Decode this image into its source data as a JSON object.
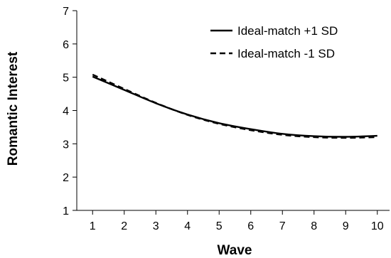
{
  "chart_data": {
    "type": "line",
    "title": "",
    "xlabel": "Wave",
    "ylabel": "Romantic Interest",
    "x": [
      1,
      2,
      3,
      4,
      5,
      6,
      7,
      8,
      9,
      10
    ],
    "xlim": [
      0.5,
      10.5
    ],
    "ylim": [
      1,
      7
    ],
    "y_ticks": [
      1,
      2,
      3,
      4,
      5,
      6,
      7
    ],
    "grid": false,
    "legend_position": "top-right",
    "series": [
      {
        "name": "Ideal-match +1 SD",
        "style": "solid",
        "color": "#000000",
        "values": [
          5.02,
          4.62,
          4.22,
          3.88,
          3.62,
          3.44,
          3.3,
          3.23,
          3.21,
          3.24
        ]
      },
      {
        "name": "Ideal-match -1 SD",
        "style": "dashed",
        "color": "#000000",
        "values": [
          5.08,
          4.65,
          4.23,
          3.87,
          3.6,
          3.41,
          3.27,
          3.2,
          3.18,
          3.2
        ]
      }
    ]
  }
}
